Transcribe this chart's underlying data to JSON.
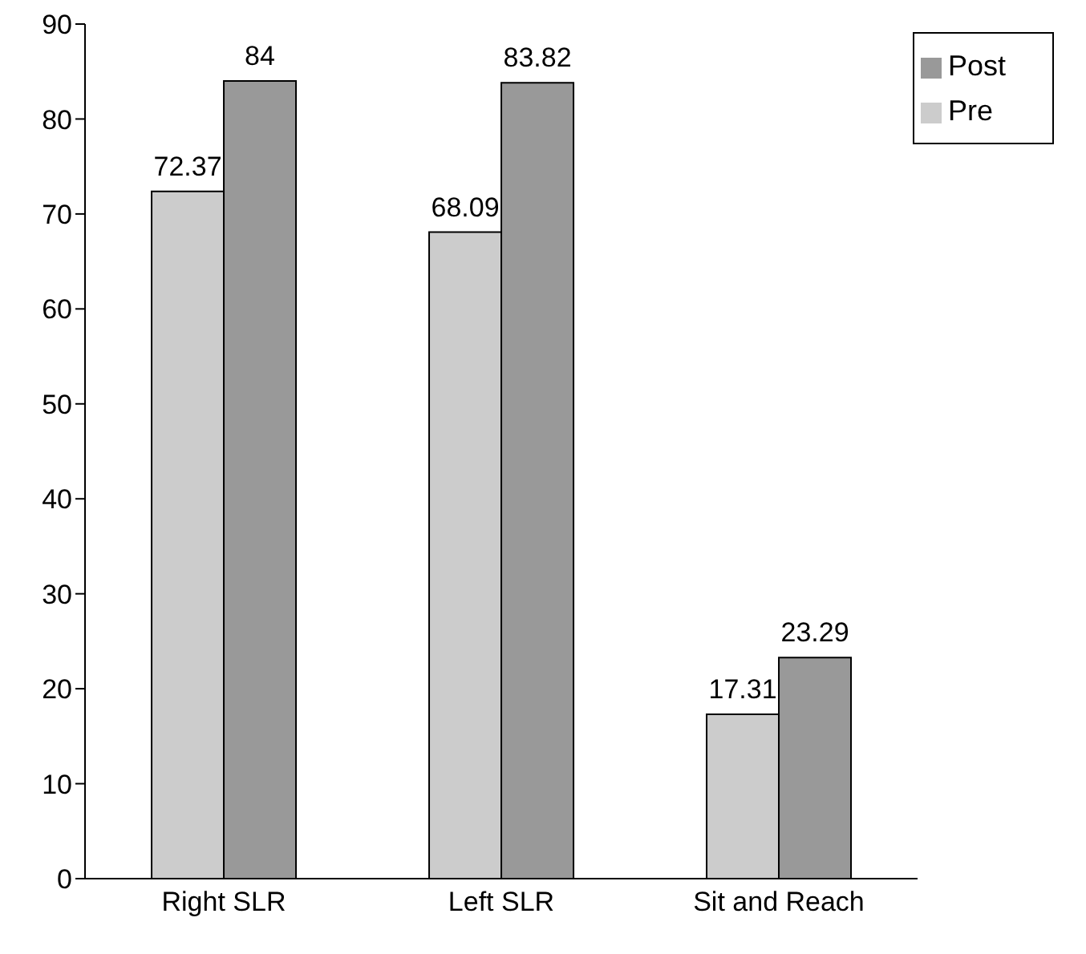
{
  "chart_data": {
    "type": "bar",
    "categories": [
      "Right SLR",
      "Left SLR",
      "Sit and Reach"
    ],
    "series": [
      {
        "name": "Pre",
        "color": "#cccccc",
        "values": [
          72.37,
          68.09,
          17.31
        ]
      },
      {
        "name": "Post",
        "color": "#999999",
        "values": [
          84,
          83.82,
          23.29
        ]
      }
    ],
    "ylim": [
      0,
      90
    ],
    "yticks": [
      0,
      10,
      20,
      30,
      40,
      50,
      60,
      70,
      80,
      90
    ],
    "data_labels": true,
    "legend": "top right",
    "grid": false
  }
}
